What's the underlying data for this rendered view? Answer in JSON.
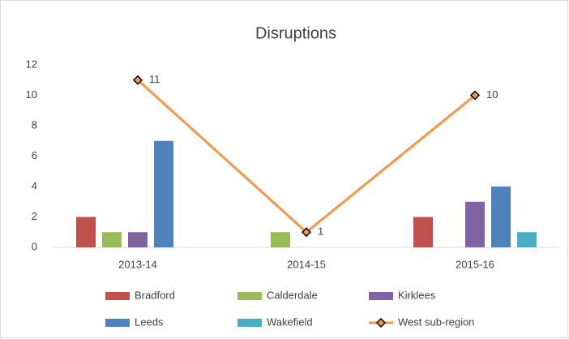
{
  "chart_data": {
    "type": "bar",
    "title": "Disruptions",
    "categories": [
      "2013-14",
      "2014-15",
      "2015-16"
    ],
    "series": [
      {
        "name": "Bradford",
        "color": "#c0504d",
        "values": [
          2,
          0,
          2
        ]
      },
      {
        "name": "Calderdale",
        "color": "#9bbb59",
        "values": [
          1,
          1,
          0
        ]
      },
      {
        "name": "Kirklees",
        "color": "#8064a2",
        "values": [
          1,
          0,
          3
        ]
      },
      {
        "name": "Leeds",
        "color": "#4f81bd",
        "values": [
          7,
          0,
          4
        ]
      },
      {
        "name": "Wakefield",
        "color": "#4bacc6",
        "values": [
          0,
          0,
          1
        ]
      },
      {
        "name": "West sub-region",
        "type": "line",
        "color": "#f79646",
        "values": [
          11,
          1,
          10
        ]
      }
    ],
    "ylim": [
      0,
      12
    ],
    "yticks": [
      0,
      2,
      4,
      6,
      8,
      10,
      12
    ],
    "grid": false,
    "legend": "bottom"
  }
}
